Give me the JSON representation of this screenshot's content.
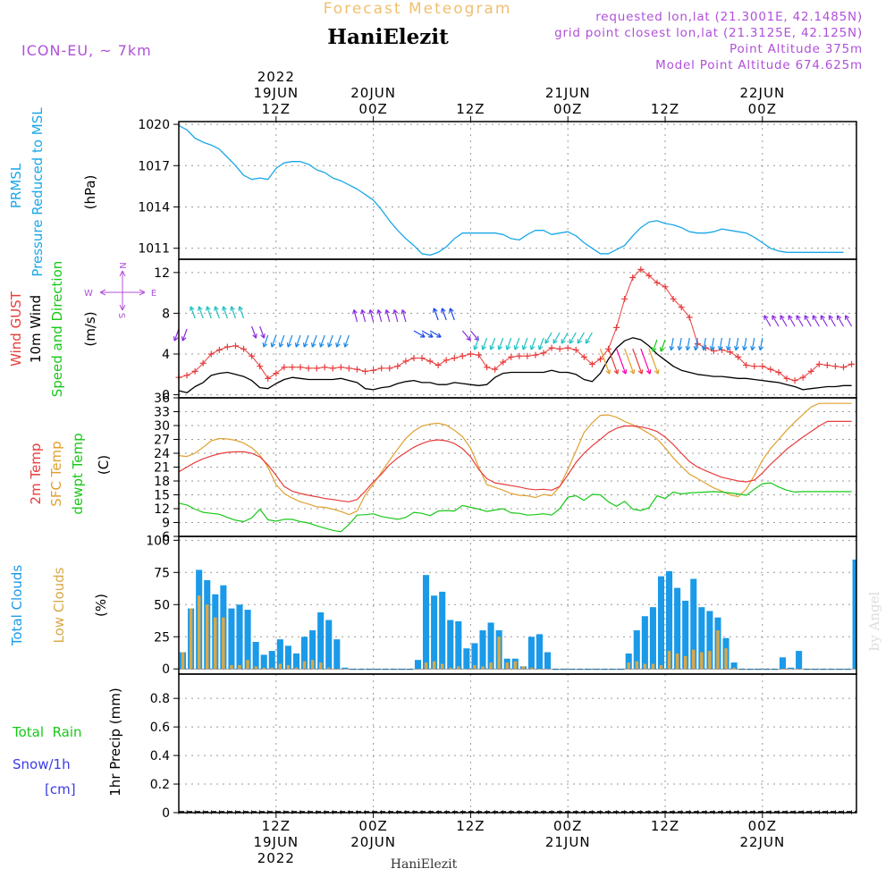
{
  "header": {
    "top_title": "Forecast Meteogram",
    "station": "HaniElezit",
    "model": "ICON-EU, ~ 7km",
    "requested": "requested lon,lat (21.3001E, 42.1485N)",
    "grid_point": "grid point closest lon,lat (21.3125E, 42.125N)",
    "point_alt": "Point Altitude 375m",
    "model_alt": "Model Point Altitude 674.625m",
    "footer_station": "HaniElezit",
    "watermark": "by Angel"
  },
  "time_axis": {
    "year": "2022",
    "ticks": [
      {
        "hour": 12,
        "l1": "12Z",
        "l2": "19JUN",
        "l3": "2022",
        "top_l1": "2022",
        "top_l2": "19JUN",
        "top_l3": "12Z"
      },
      {
        "hour": 24,
        "l1": "00Z",
        "l2": "20JUN",
        "top_l1": "20JUN",
        "top_l2": "00Z"
      },
      {
        "hour": 36,
        "l1": "12Z",
        "top_l1": "12Z"
      },
      {
        "hour": 48,
        "l1": "00Z",
        "l2": "21JUN",
        "top_l1": "21JUN",
        "top_l2": "00Z"
      },
      {
        "hour": 60,
        "l1": "12Z",
        "top_l1": "12Z"
      },
      {
        "hour": 72,
        "l1": "00Z",
        "l2": "22JUN",
        "top_l1": "22JUN",
        "top_l2": "00Z"
      }
    ]
  },
  "colors": {
    "pressure": "#1aa7e8",
    "gust": "#e83c3c",
    "wind": "#000000",
    "t2m": "#e83c3c",
    "sfc": "#e0a030",
    "dew": "#18c818",
    "total_clouds": "#1a9ae8",
    "low_clouds": "#d8a848",
    "rain": "#18c818",
    "snow": "#3a3ae8",
    "purple": "#b050d8",
    "title_orange": "#f0c070"
  },
  "panels": {
    "pressure": {
      "label1": "PRMSL",
      "label2": "Pressure Reduced to MSL",
      "unit": "(hPa)"
    },
    "wind": {
      "label1": "Wind GUST",
      "label2": "10m Wind",
      "label3": "Speed and Direction",
      "unit": "(m/s)",
      "compass": {
        "n": "N",
        "s": "S",
        "e": "E",
        "w": "W"
      }
    },
    "temp": {
      "label1": "2m Temp",
      "label2": "SFC Temp",
      "label3": "dewpt Temp",
      "unit": "(C)"
    },
    "cloud": {
      "label1": "Total Clouds",
      "label2": "Low Clouds",
      "unit": "(%)"
    },
    "precip": {
      "label1": "Total  Rain",
      "label2": "Snow/1h",
      "label3": "[cm]",
      "unit": "1hr Precip (mm)"
    }
  },
  "chart_data": [
    {
      "type": "line",
      "name": "pressure",
      "ylabel": "(hPa)",
      "yticks": [
        1011,
        1014,
        1017,
        1020
      ],
      "ylim": [
        1010.2,
        1020.2
      ],
      "x_hours": [
        0,
        1,
        2,
        3,
        4,
        5,
        6,
        7,
        8,
        9,
        10,
        11,
        12,
        13,
        14,
        15,
        16,
        17,
        18,
        19,
        20,
        21,
        22,
        23,
        24,
        25,
        26,
        27,
        28,
        29,
        30,
        31,
        32,
        33,
        34,
        35,
        36,
        37,
        38,
        39,
        40,
        41,
        42,
        43,
        44,
        45,
        46,
        47,
        48,
        49,
        50,
        51,
        52,
        53,
        54,
        55,
        56,
        57,
        58,
        59,
        60,
        61,
        62,
        63,
        64,
        65,
        66,
        67,
        68,
        69,
        70,
        71,
        72,
        73,
        74,
        75,
        76,
        77,
        78,
        79,
        80,
        81,
        82,
        83
      ],
      "values": [
        1019.9,
        1019.6,
        1019.0,
        1018.7,
        1018.5,
        1018.2,
        1017.6,
        1017.0,
        1016.3,
        1016.0,
        1016.1,
        1016.0,
        1016.8,
        1017.2,
        1017.3,
        1017.3,
        1017.1,
        1016.7,
        1016.5,
        1016.1,
        1015.9,
        1015.6,
        1015.3,
        1014.9,
        1014.5,
        1013.8,
        1013.0,
        1012.3,
        1011.7,
        1011.2,
        1010.6,
        1010.5,
        1010.7,
        1011.1,
        1011.7,
        1012.1,
        1012.1,
        1012.1,
        1012.1,
        1012.1,
        1012.0,
        1011.7,
        1011.6,
        1012.0,
        1012.3,
        1012.3,
        1012.0,
        1012.1,
        1012.2,
        1011.9,
        1011.4,
        1011.0,
        1010.6,
        1010.6,
        1010.9,
        1011.2,
        1011.9,
        1012.5,
        1012.9,
        1013.0,
        1012.8,
        1012.7,
        1012.5,
        1012.2,
        1012.1,
        1012.1,
        1012.2,
        1012.4,
        1012.3,
        1012.2,
        1012.1,
        1011.8,
        1011.4,
        1011.0,
        1010.8,
        1010.7,
        1010.7,
        1010.7,
        1010.7,
        1010.7,
        1010.7,
        1010.7,
        1010.7,
        1010.7
      ]
    },
    {
      "type": "line",
      "name": "wind",
      "ylabel": "(m/s)",
      "yticks": [
        0,
        4,
        8,
        12
      ],
      "ylim": [
        -0.3,
        13.3
      ],
      "x_hours": [
        0,
        1,
        2,
        3,
        4,
        5,
        6,
        7,
        8,
        9,
        10,
        11,
        12,
        13,
        14,
        15,
        16,
        17,
        18,
        19,
        20,
        21,
        22,
        23,
        24,
        25,
        26,
        27,
        28,
        29,
        30,
        31,
        32,
        33,
        34,
        35,
        36,
        37,
        38,
        39,
        40,
        41,
        42,
        43,
        44,
        45,
        46,
        47,
        48,
        49,
        50,
        51,
        52,
        53,
        54,
        55,
        56,
        57,
        58,
        59,
        60,
        61,
        62,
        63,
        64,
        65,
        66,
        67,
        68,
        69,
        70,
        71,
        72,
        73,
        74,
        75,
        76,
        77,
        78,
        79,
        80,
        81,
        82,
        83
      ],
      "series": [
        {
          "name": "Wind GUST",
          "values": [
            1.7,
            1.9,
            2.3,
            3.1,
            4.0,
            4.4,
            4.7,
            4.8,
            4.5,
            3.8,
            2.8,
            1.6,
            2.1,
            2.7,
            2.7,
            2.7,
            2.6,
            2.6,
            2.7,
            2.6,
            2.7,
            2.6,
            2.5,
            2.3,
            2.4,
            2.6,
            2.6,
            2.8,
            3.3,
            3.6,
            3.6,
            3.3,
            2.9,
            3.4,
            3.6,
            3.8,
            4.0,
            3.9,
            2.7,
            2.5,
            3.2,
            3.7,
            3.8,
            3.8,
            3.9,
            4.1,
            4.6,
            4.5,
            4.6,
            4.4,
            3.7,
            3.0,
            3.5,
            4.5,
            6.6,
            9.4,
            11.5,
            12.3,
            11.7,
            11.0,
            10.6,
            9.4,
            8.6,
            7.6,
            5.0,
            4.6,
            4.3,
            4.4,
            4.2,
            3.7,
            2.9,
            2.8,
            2.8,
            2.5,
            2.2,
            1.6,
            1.4,
            1.7,
            2.3,
            3.0,
            2.9,
            2.8,
            2.7,
            3.0
          ]
        },
        {
          "name": "10m Wind",
          "values": [
            0.4,
            0.2,
            0.8,
            1.2,
            1.9,
            2.1,
            2.2,
            2.0,
            1.8,
            1.4,
            0.7,
            0.6,
            1.1,
            1.5,
            1.7,
            1.6,
            1.5,
            1.5,
            1.5,
            1.5,
            1.6,
            1.4,
            1.2,
            0.6,
            0.5,
            0.7,
            0.8,
            1.1,
            1.3,
            1.4,
            1.2,
            1.2,
            1.0,
            1.0,
            1.2,
            1.1,
            1.0,
            0.9,
            1.0,
            1.7,
            2.1,
            2.2,
            2.2,
            2.2,
            2.2,
            2.2,
            2.4,
            2.2,
            2.2,
            2.0,
            1.5,
            1.3,
            2.1,
            3.5,
            4.6,
            5.3,
            5.6,
            5.4,
            4.8,
            4.0,
            3.4,
            2.8,
            2.4,
            2.2,
            2.0,
            1.9,
            1.8,
            1.8,
            1.7,
            1.6,
            1.6,
            1.5,
            1.4,
            1.3,
            1.2,
            1.0,
            0.8,
            0.5,
            0.6,
            0.7,
            0.8,
            0.8,
            0.9,
            0.9
          ]
        }
      ]
    },
    {
      "type": "line",
      "name": "temperature",
      "ylabel": "(C)",
      "yticks": [
        6,
        9,
        12,
        15,
        18,
        21,
        24,
        27,
        30,
        33,
        36
      ],
      "ylim": [
        6,
        36
      ],
      "x_hours": [
        0,
        1,
        2,
        3,
        4,
        5,
        6,
        7,
        8,
        9,
        10,
        11,
        12,
        13,
        14,
        15,
        16,
        17,
        18,
        19,
        20,
        21,
        22,
        23,
        24,
        25,
        26,
        27,
        28,
        29,
        30,
        31,
        32,
        33,
        34,
        35,
        36,
        37,
        38,
        39,
        40,
        41,
        42,
        43,
        44,
        45,
        46,
        47,
        48,
        49,
        50,
        51,
        52,
        53,
        54,
        55,
        56,
        57,
        58,
        59,
        60,
        61,
        62,
        63,
        64,
        65,
        66,
        67,
        68,
        69,
        70,
        71,
        72,
        73,
        74,
        75,
        76,
        77,
        78,
        79,
        80,
        81,
        82,
        83
      ],
      "series": [
        {
          "name": "2m Temp",
          "values": [
            20.0,
            21.0,
            22.0,
            22.8,
            23.4,
            23.9,
            24.2,
            24.3,
            24.3,
            24.0,
            23.2,
            21.5,
            19.2,
            16.8,
            15.8,
            15.3,
            14.9,
            14.6,
            14.2,
            14.0,
            13.7,
            13.5,
            14.0,
            15.8,
            17.8,
            19.5,
            21.5,
            23.0,
            24.2,
            25.3,
            26.1,
            26.7,
            26.9,
            26.7,
            26.1,
            25.0,
            23.2,
            20.5,
            18.5,
            17.6,
            17.3,
            17.0,
            16.7,
            16.3,
            16.1,
            16.2,
            16.0,
            16.8,
            19.3,
            22.0,
            24.0,
            25.6,
            27.0,
            28.5,
            29.4,
            29.9,
            29.9,
            29.7,
            29.3,
            28.7,
            27.5,
            25.9,
            24.0,
            22.2,
            21.0,
            20.2,
            19.5,
            18.8,
            18.4,
            18.0,
            17.8,
            18.2,
            19.7,
            21.6,
            23.2,
            24.9,
            26.2,
            27.5,
            28.7,
            29.9,
            30.9,
            30.9,
            30.9,
            30.9
          ]
        },
        {
          "name": "SFC Temp",
          "values": [
            23.5,
            23.3,
            24.0,
            25.3,
            26.7,
            27.2,
            27.1,
            26.8,
            26.2,
            25.2,
            23.6,
            21.0,
            17.2,
            15.3,
            14.3,
            13.5,
            13.0,
            12.4,
            12.3,
            11.9,
            11.4,
            10.7,
            11.5,
            15.0,
            17.3,
            19.9,
            22.5,
            24.9,
            27.2,
            28.8,
            29.9,
            30.3,
            30.5,
            30.1,
            29.0,
            27.6,
            25.1,
            21.0,
            17.2,
            16.6,
            16.0,
            15.3,
            14.9,
            14.8,
            14.4,
            15.1,
            14.8,
            16.8,
            20.5,
            24.5,
            28.5,
            30.6,
            32.2,
            32.3,
            31.8,
            30.9,
            30.2,
            29.3,
            28.3,
            27.1,
            25.2,
            23.0,
            21.2,
            19.5,
            18.5,
            17.5,
            16.5,
            15.8,
            15.0,
            14.6,
            16.2,
            19.2,
            22.5,
            25.0,
            27.0,
            29.0,
            30.8,
            32.4,
            34.0,
            34.8,
            34.8,
            34.8,
            34.8,
            34.8
          ]
        },
        {
          "name": "dewpt Temp",
          "values": [
            13.2,
            12.8,
            11.9,
            11.2,
            11.0,
            10.8,
            10.1,
            9.5,
            9.2,
            10.0,
            11.9,
            9.6,
            9.3,
            9.7,
            9.7,
            9.2,
            8.9,
            8.3,
            7.8,
            7.3,
            7.0,
            8.6,
            10.6,
            10.7,
            10.9,
            10.3,
            10.0,
            9.7,
            10.1,
            11.2,
            11.0,
            10.5,
            11.5,
            11.6,
            11.5,
            12.7,
            12.3,
            11.9,
            11.4,
            11.7,
            12.0,
            11.1,
            11.0,
            10.6,
            10.7,
            10.9,
            10.6,
            12.0,
            14.5,
            14.8,
            13.8,
            15.1,
            15.0,
            13.5,
            12.5,
            13.6,
            11.9,
            11.6,
            12.2,
            14.8,
            14.2,
            15.6,
            15.2,
            15.4,
            15.5,
            15.6,
            15.7,
            15.6,
            15.4,
            15.2,
            14.9,
            16.2,
            17.4,
            17.6,
            16.7,
            16.0,
            15.6,
            15.7,
            15.7,
            15.7,
            15.7,
            15.7,
            15.7,
            15.7
          ]
        }
      ]
    },
    {
      "type": "bar",
      "name": "clouds",
      "ylabel": "(%)",
      "yticks": [
        0,
        25,
        50,
        75,
        100
      ],
      "ylim": [
        -4,
        103
      ],
      "x_hours": [
        0,
        1,
        2,
        3,
        4,
        5,
        6,
        7,
        8,
        9,
        10,
        11,
        12,
        13,
        14,
        15,
        16,
        17,
        18,
        19,
        20,
        21,
        22,
        23,
        24,
        25,
        26,
        27,
        28,
        29,
        30,
        31,
        32,
        33,
        34,
        35,
        36,
        37,
        38,
        39,
        40,
        41,
        42,
        43,
        44,
        45,
        46,
        47,
        48,
        49,
        50,
        51,
        52,
        53,
        54,
        55,
        56,
        57,
        58,
        59,
        60,
        61,
        62,
        63,
        64,
        65,
        66,
        67,
        68,
        69,
        70,
        71,
        72,
        73,
        74,
        75,
        76,
        77,
        78,
        79,
        80,
        81,
        82,
        83
      ],
      "series": [
        {
          "name": "Total Clouds",
          "values": [
            13,
            47,
            77,
            69,
            58,
            65,
            47,
            50,
            46,
            21,
            11,
            14,
            23,
            18,
            12,
            25,
            30,
            44,
            38,
            23,
            1,
            0,
            0,
            0,
            0,
            0,
            0,
            0,
            0,
            7,
            73,
            57,
            60,
            38,
            37,
            16,
            20,
            30,
            36,
            30,
            8,
            8,
            2,
            25,
            27,
            13,
            0,
            0,
            0,
            0,
            0,
            0,
            0,
            0,
            0,
            12,
            30,
            41,
            48,
            72,
            76,
            63,
            53,
            70,
            48,
            45,
            40,
            24,
            5,
            0,
            0,
            0,
            0,
            0,
            9,
            1,
            14,
            0,
            0,
            0,
            0,
            0,
            0,
            85
          ]
        },
        {
          "name": "Low Clouds",
          "values": [
            13,
            47,
            57,
            50,
            40,
            40,
            3,
            3,
            7,
            2,
            1,
            1,
            4,
            3,
            1,
            6,
            7,
            5,
            1,
            0,
            0,
            0,
            0,
            0,
            0,
            0,
            0,
            0,
            0,
            0,
            5,
            6,
            4,
            1,
            2,
            0,
            3,
            2,
            5,
            25,
            5,
            6,
            2,
            1,
            0,
            0,
            0,
            0,
            0,
            0,
            0,
            0,
            0,
            0,
            0,
            5,
            6,
            4,
            4,
            3,
            14,
            12,
            10,
            15,
            13,
            14,
            30,
            16,
            1,
            0,
            0,
            0,
            0,
            0,
            0,
            0,
            0,
            0,
            0,
            0,
            0,
            0,
            0,
            0
          ]
        }
      ]
    },
    {
      "type": "line",
      "name": "precipitation",
      "ylabel": "1hr Precip (mm)",
      "yticks": [
        0,
        0.2,
        0.4,
        0.6,
        0.8
      ],
      "ylim": [
        0,
        0.97
      ],
      "series": [
        {
          "name": "Total Rain",
          "values": []
        },
        {
          "name": "Snow/1h",
          "values": []
        }
      ]
    }
  ]
}
